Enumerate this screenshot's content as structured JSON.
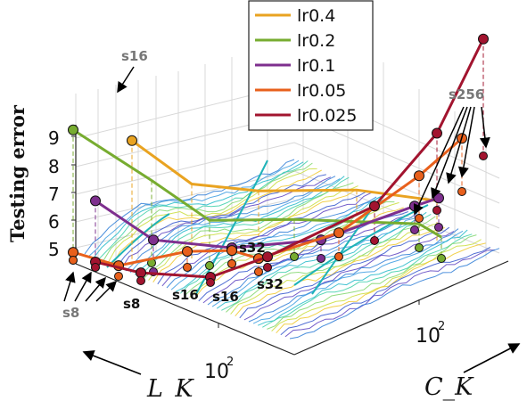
{
  "chart_data": {
    "type": "line",
    "ylabel": "Testing error",
    "xlabel_left": "L_K",
    "xlabel_right": "C_K",
    "yticks": [
      "5",
      "6",
      "7",
      "8",
      "9"
    ],
    "y_range": [
      4.5,
      9.5
    ],
    "axis_tick_left": "10",
    "axis_tick_left_exp": "2",
    "axis_tick_right": "10",
    "axis_tick_right_exp": "2",
    "legend": [
      {
        "name": "lr0.4",
        "color": "#e9a321"
      },
      {
        "name": "lr0.2",
        "color": "#77ac30"
      },
      {
        "name": "lr0.1",
        "color": "#7e2f8e"
      },
      {
        "name": "lr0.05",
        "color": "#e8601c"
      },
      {
        "name": "lr0.025",
        "color": "#a2142f"
      }
    ],
    "annotations": [
      {
        "text": "s16",
        "color": "#777777"
      },
      {
        "text": "s256",
        "color": "#777777"
      },
      {
        "text": "s8",
        "color": "#777777"
      },
      {
        "text": "s8",
        "color": "#000000"
      },
      {
        "text": "s16",
        "color": "#000000"
      },
      {
        "text": "s16",
        "color": "#000000"
      },
      {
        "text": "s32",
        "color": "#000000"
      },
      {
        "text": "s32",
        "color": "#000000"
      }
    ]
  }
}
